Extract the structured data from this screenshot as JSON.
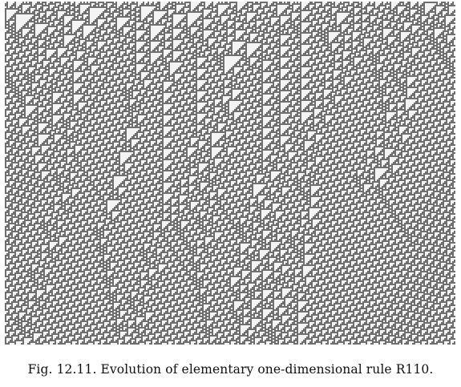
{
  "figure": {
    "caption": "Fig. 12.11. Evolution of elementary one-dimensional rule R110."
  },
  "colors": {
    "live_cell": "#6f6f6f",
    "dead_cell": "#f4f4f4",
    "page_background": "#ffffff"
  }
}
